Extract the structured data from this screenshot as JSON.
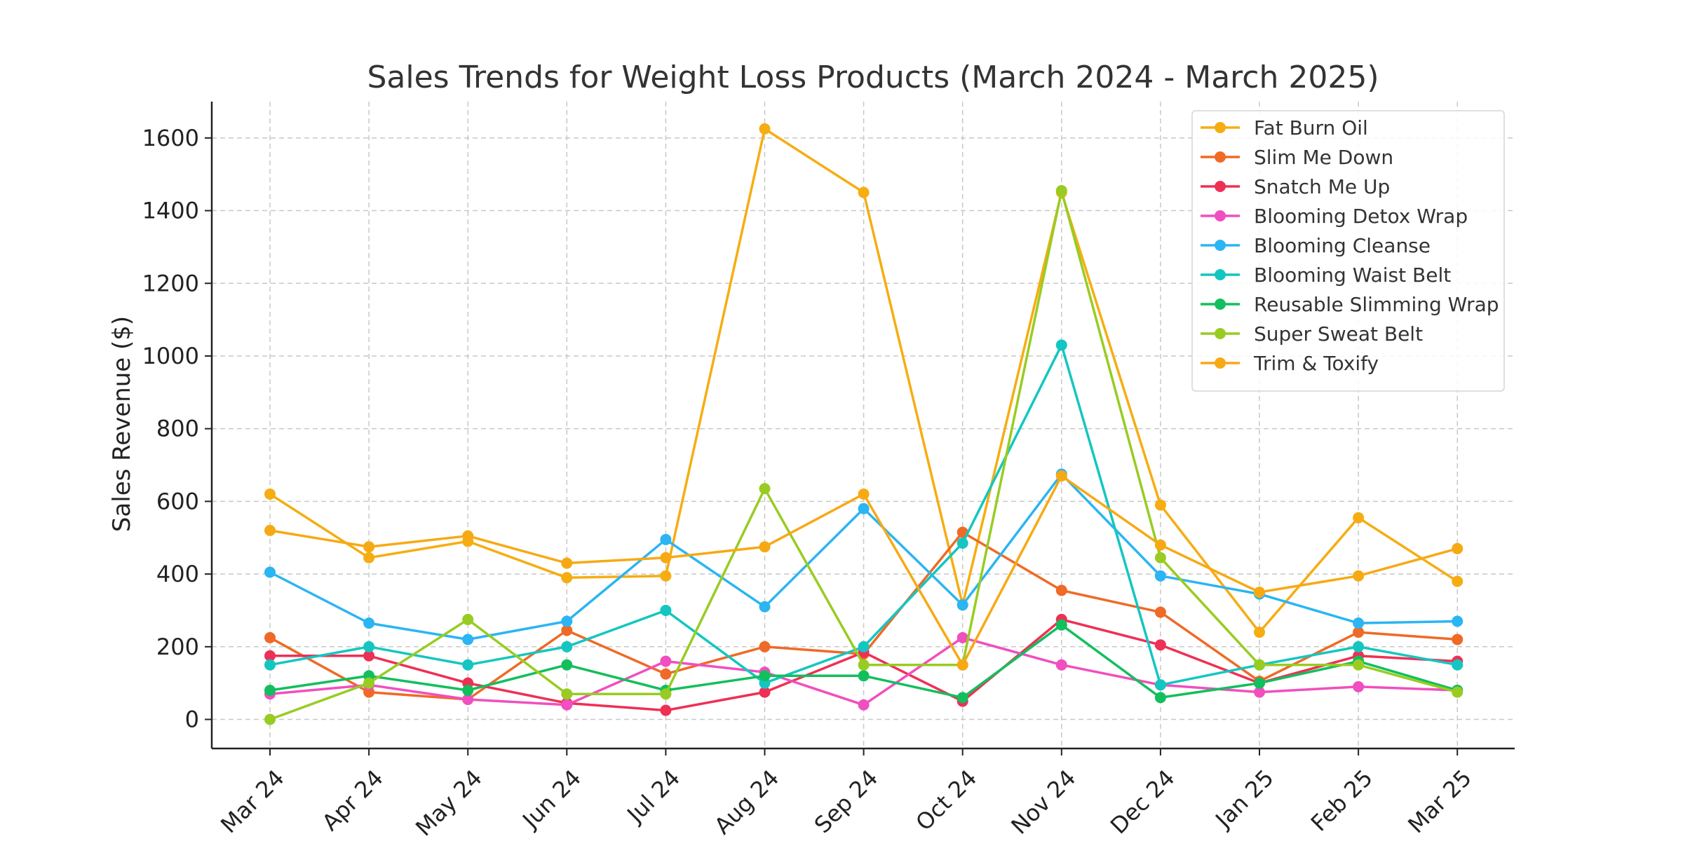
{
  "chart_data": {
    "type": "line",
    "title": "Sales Trends for Weight Loss Products (March 2024 - March 2025)",
    "xlabel": "",
    "ylabel": "Sales Revenue ($)",
    "ylim": [
      -80,
      1700
    ],
    "yticks": [
      0,
      200,
      400,
      600,
      800,
      1000,
      1200,
      1400,
      1600
    ],
    "grid": true,
    "legend_position": "top-right",
    "categories": [
      "Mar 24",
      "Apr 24",
      "May 24",
      "Jun 24",
      "Jul 24",
      "Aug 24",
      "Sep 24",
      "Oct 24",
      "Nov 24",
      "Dec 24",
      "Jan 25",
      "Feb 25",
      "Mar 25"
    ],
    "series": [
      {
        "name": "Fat Burn Oil",
        "color": "#f6ad12",
        "values": [
          620,
          445,
          490,
          390,
          395,
          1625,
          1450,
          315,
          1450,
          590,
          240,
          555,
          380
        ]
      },
      {
        "name": "Slim Me Down",
        "color": "#ef6a26",
        "values": [
          225,
          75,
          55,
          245,
          125,
          200,
          180,
          515,
          355,
          295,
          105,
          240,
          220
        ]
      },
      {
        "name": "Snatch Me Up",
        "color": "#ee3055",
        "values": [
          175,
          175,
          100,
          45,
          25,
          75,
          185,
          50,
          275,
          205,
          100,
          175,
          160
        ]
      },
      {
        "name": "Blooming Detox Wrap",
        "color": "#f04fbf",
        "values": [
          70,
          95,
          55,
          40,
          160,
          130,
          40,
          225,
          150,
          95,
          75,
          90,
          80
        ]
      },
      {
        "name": "Blooming Cleanse",
        "color": "#2bb5f2",
        "values": [
          405,
          265,
          220,
          270,
          495,
          310,
          580,
          315,
          675,
          395,
          345,
          265,
          270
        ]
      },
      {
        "name": "Blooming Waist Belt",
        "color": "#14c6c1",
        "values": [
          150,
          200,
          150,
          200,
          300,
          100,
          200,
          485,
          1030,
          95,
          150,
          200,
          150
        ]
      },
      {
        "name": "Reusable Slimming Wrap",
        "color": "#12bf5d",
        "values": [
          80,
          120,
          80,
          150,
          80,
          120,
          120,
          60,
          260,
          60,
          100,
          160,
          80
        ]
      },
      {
        "name": "Super Sweat Belt",
        "color": "#98cc22",
        "values": [
          0,
          100,
          275,
          70,
          70,
          635,
          150,
          150,
          1455,
          445,
          150,
          150,
          75
        ]
      },
      {
        "name": "Trim & Toxify",
        "color": "#f7a914",
        "values": [
          520,
          475,
          505,
          430,
          445,
          475,
          620,
          150,
          670,
          480,
          350,
          395,
          470
        ]
      }
    ]
  }
}
